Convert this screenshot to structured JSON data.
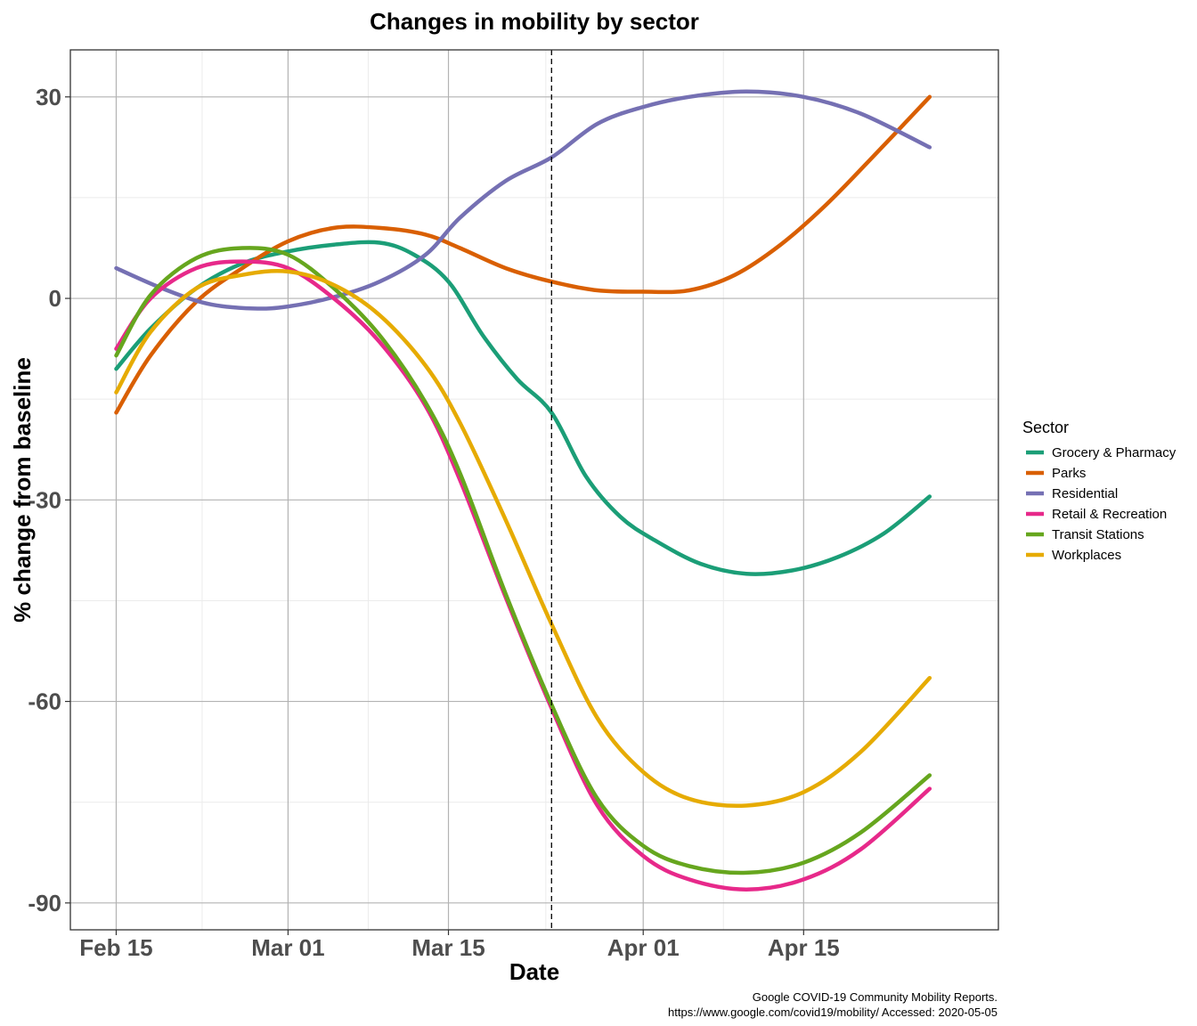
{
  "chart_data": {
    "type": "line",
    "title": "Changes in mobility by sector",
    "xlabel": "Date",
    "ylabel": "% change from baseline",
    "x_ticks": [
      {
        "date": "2020-02-15",
        "label": "Feb 15"
      },
      {
        "date": "2020-03-01",
        "label": "Mar 01"
      },
      {
        "date": "2020-03-15",
        "label": "Mar 15"
      },
      {
        "date": "2020-04-01",
        "label": "Apr 01"
      },
      {
        "date": "2020-04-15",
        "label": "Apr 15"
      }
    ],
    "y_ticks": [
      30,
      0,
      -30,
      -60,
      -90
    ],
    "xlim": [
      "2020-02-11",
      "2020-05-02"
    ],
    "ylim": [
      -94,
      37
    ],
    "grid": true,
    "reference_line": {
      "date": "2020-03-24",
      "style": "dashed"
    },
    "legend": {
      "title": "Sector",
      "position": "right"
    },
    "series": [
      {
        "name": "Grocery & Pharmacy",
        "color": "#1b9e77",
        "x": [
          "2020-02-15",
          "2020-02-18",
          "2020-02-22",
          "2020-02-26",
          "2020-03-01",
          "2020-03-05",
          "2020-03-09",
          "2020-03-12",
          "2020-03-15",
          "2020-03-18",
          "2020-03-21",
          "2020-03-24",
          "2020-03-27",
          "2020-03-30",
          "2020-04-02",
          "2020-04-06",
          "2020-04-10",
          "2020-04-14",
          "2020-04-18",
          "2020-04-22",
          "2020-04-26"
        ],
        "y": [
          -10.5,
          -4.5,
          1.5,
          5.2,
          7,
          8,
          8.3,
          6.5,
          2.5,
          -5.5,
          -12,
          -17,
          -26.5,
          -32.5,
          -36,
          -39.5,
          -41,
          -40.5,
          -38.5,
          -35,
          -29.5
        ]
      },
      {
        "name": "Parks",
        "color": "#d95f02",
        "x": [
          "2020-02-15",
          "2020-02-18",
          "2020-02-22",
          "2020-02-26",
          "2020-03-01",
          "2020-03-05",
          "2020-03-09",
          "2020-03-13",
          "2020-03-16",
          "2020-03-20",
          "2020-03-24",
          "2020-03-28",
          "2020-04-01",
          "2020-04-05",
          "2020-04-09",
          "2020-04-13",
          "2020-04-17",
          "2020-04-21",
          "2020-04-26"
        ],
        "y": [
          -17,
          -8.5,
          -0.5,
          4.5,
          8.5,
          10.5,
          10.5,
          9.5,
          7.5,
          4.5,
          2.5,
          1.2,
          1,
          1.2,
          3.5,
          8,
          14,
          21,
          30
        ]
      },
      {
        "name": "Residential",
        "color": "#7570b3",
        "x": [
          "2020-02-15",
          "2020-02-19",
          "2020-02-23",
          "2020-02-27",
          "2020-03-01",
          "2020-03-05",
          "2020-03-09",
          "2020-03-13",
          "2020-03-16",
          "2020-03-20",
          "2020-03-24",
          "2020-03-28",
          "2020-04-01",
          "2020-04-05",
          "2020-04-10",
          "2020-04-15",
          "2020-04-20",
          "2020-04-26"
        ],
        "y": [
          4.5,
          1.5,
          -0.8,
          -1.5,
          -1.2,
          0.2,
          2.5,
          6.5,
          12,
          17.5,
          21,
          26,
          28.5,
          30,
          30.8,
          30,
          27.5,
          22.5
        ]
      },
      {
        "name": "Retail & Recreation",
        "color": "#e7298a",
        "x": [
          "2020-02-15",
          "2020-02-18",
          "2020-02-22",
          "2020-02-26",
          "2020-03-01",
          "2020-03-05",
          "2020-03-09",
          "2020-03-13",
          "2020-03-16",
          "2020-03-20",
          "2020-03-24",
          "2020-03-28",
          "2020-04-01",
          "2020-04-05",
          "2020-04-10",
          "2020-04-15",
          "2020-04-20",
          "2020-04-26"
        ],
        "y": [
          -7.5,
          0,
          4.5,
          5.5,
          4.5,
          0,
          -6.5,
          -16,
          -27,
          -44.5,
          -61,
          -75.5,
          -83,
          -86.5,
          -88,
          -86.5,
          -82,
          -73
        ]
      },
      {
        "name": "Transit Stations",
        "color": "#66a61e",
        "x": [
          "2020-02-15",
          "2020-02-18",
          "2020-02-22",
          "2020-02-26",
          "2020-03-01",
          "2020-03-05",
          "2020-03-09",
          "2020-03-13",
          "2020-03-16",
          "2020-03-20",
          "2020-03-24",
          "2020-03-28",
          "2020-04-01",
          "2020-04-05",
          "2020-04-10",
          "2020-04-15",
          "2020-04-20",
          "2020-04-26"
        ],
        "y": [
          -8.5,
          0.5,
          6,
          7.5,
          6.5,
          1.5,
          -5.5,
          -15.5,
          -26,
          -44,
          -60.5,
          -74.5,
          -81.5,
          -84.5,
          -85.5,
          -84,
          -79.5,
          -71
        ]
      },
      {
        "name": "Workplaces",
        "color": "#e6ab02",
        "x": [
          "2020-02-15",
          "2020-02-18",
          "2020-02-22",
          "2020-02-26",
          "2020-03-01",
          "2020-03-05",
          "2020-03-09",
          "2020-03-13",
          "2020-03-16",
          "2020-03-20",
          "2020-03-24",
          "2020-03-28",
          "2020-04-01",
          "2020-04-05",
          "2020-04-10",
          "2020-04-15",
          "2020-04-20",
          "2020-04-26"
        ],
        "y": [
          -14,
          -5,
          1.5,
          3.5,
          4,
          2,
          -2.5,
          -10,
          -18.5,
          -33,
          -48.5,
          -62.5,
          -70.5,
          -74.5,
          -75.5,
          -73.5,
          -67.5,
          -56.5
        ]
      }
    ]
  },
  "caption": {
    "line1": "Google COVID-19 Community Mobility Reports.",
    "line2": "https://www.google.com/covid19/mobility/ Accessed: 2020-05-05"
  }
}
